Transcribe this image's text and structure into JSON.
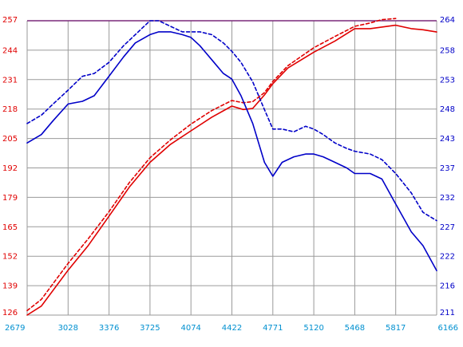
{
  "chart_data": {
    "type": "line",
    "x_ticks": [
      "2679",
      "3028",
      "3376",
      "3725",
      "4074",
      "4422",
      "4771",
      "5120",
      "5468",
      "5817",
      "6166"
    ],
    "y_left_ticks": [
      "126",
      "139",
      "152",
      "165",
      "179",
      "192",
      "205",
      "218",
      "231",
      "244",
      "257"
    ],
    "y_right_ticks": [
      "211",
      "216",
      "222",
      "227",
      "232",
      "237",
      "243",
      "248",
      "253",
      "258",
      "264"
    ],
    "xlim": [
      2679,
      6166
    ],
    "ylim_left": [
      126,
      257
    ],
    "ylim_right": [
      211,
      264
    ],
    "grid": true,
    "colors": {
      "left_axis": "#e00000",
      "right_axis": "#0000c8",
      "x_axis": "#0090d0",
      "grid": "#9a9a9a",
      "top_line": "#7a2a7a"
    },
    "series": [
      {
        "axis": "left",
        "color": "#e00000",
        "style": "solid",
        "x": [
          2679,
          2800,
          3028,
          3200,
          3376,
          3550,
          3725,
          3900,
          4074,
          4250,
          4422,
          4520,
          4600,
          4700,
          4771,
          4900,
          5120,
          5300,
          5468,
          5600,
          5817,
          5950,
          6050,
          6166
        ],
        "y": [
          126,
          130,
          146,
          157,
          170,
          183,
          194,
          202,
          208,
          214,
          219,
          217.5,
          218,
          224,
          229,
          236,
          243,
          248,
          253.5,
          253.5,
          255,
          253.5,
          253,
          252
        ]
      },
      {
        "axis": "left",
        "color": "#e00000",
        "style": "dashed",
        "x": [
          2679,
          2800,
          3028,
          3200,
          3376,
          3550,
          3725,
          3900,
          4074,
          4250,
          4422,
          4520,
          4600,
          4700,
          4771,
          4900,
          5120,
          5300,
          5468,
          5600,
          5700,
          5817
        ],
        "y": [
          128,
          133,
          149,
          160,
          172,
          185,
          196,
          204,
          211,
          217,
          221.5,
          220.5,
          221,
          225,
          230,
          237,
          245,
          250,
          254.5,
          256,
          257.5,
          258
        ]
      },
      {
        "axis": "right",
        "color": "#0000c8",
        "style": "solid",
        "x": [
          2679,
          2800,
          2900,
          3028,
          3150,
          3250,
          3376,
          3500,
          3600,
          3725,
          3800,
          3900,
          4000,
          4074,
          4150,
          4250,
          4350,
          4422,
          4500,
          4600,
          4700,
          4771,
          4850,
          4950,
          5050,
          5120,
          5200,
          5300,
          5400,
          5468,
          5600,
          5700,
          5817,
          5950,
          6050,
          6166
        ],
        "y": [
          242,
          243.5,
          246,
          249,
          249.5,
          250.5,
          254,
          257.5,
          260,
          261.5,
          262,
          262,
          261.5,
          261,
          259.5,
          257,
          254.5,
          253.5,
          250.5,
          245.5,
          238.5,
          236,
          238.5,
          239.5,
          240,
          240,
          239.5,
          238.5,
          237.5,
          236.5,
          236.5,
          235.5,
          231,
          226,
          223.5,
          219
        ]
      },
      {
        "axis": "right",
        "color": "#0000c8",
        "style": "dashed",
        "x": [
          2679,
          2800,
          2900,
          3028,
          3150,
          3250,
          3376,
          3500,
          3600,
          3725,
          3800,
          3900,
          4000,
          4074,
          4150,
          4250,
          4350,
          4422,
          4500,
          4600,
          4700,
          4771,
          4850,
          4950,
          5050,
          5120,
          5200,
          5300,
          5400,
          5468,
          5600,
          5700,
          5817,
          5950,
          6050,
          6166
        ],
        "y": [
          245.5,
          247,
          249,
          251.5,
          254,
          254.5,
          256.5,
          259.5,
          261.5,
          264,
          264,
          263,
          262,
          262,
          262,
          261.5,
          260,
          258.5,
          256.5,
          253,
          248,
          244.5,
          244.5,
          244,
          245,
          244.5,
          243.5,
          242,
          241,
          240.5,
          240,
          239,
          236.5,
          233,
          229.5,
          228
        ]
      }
    ]
  }
}
